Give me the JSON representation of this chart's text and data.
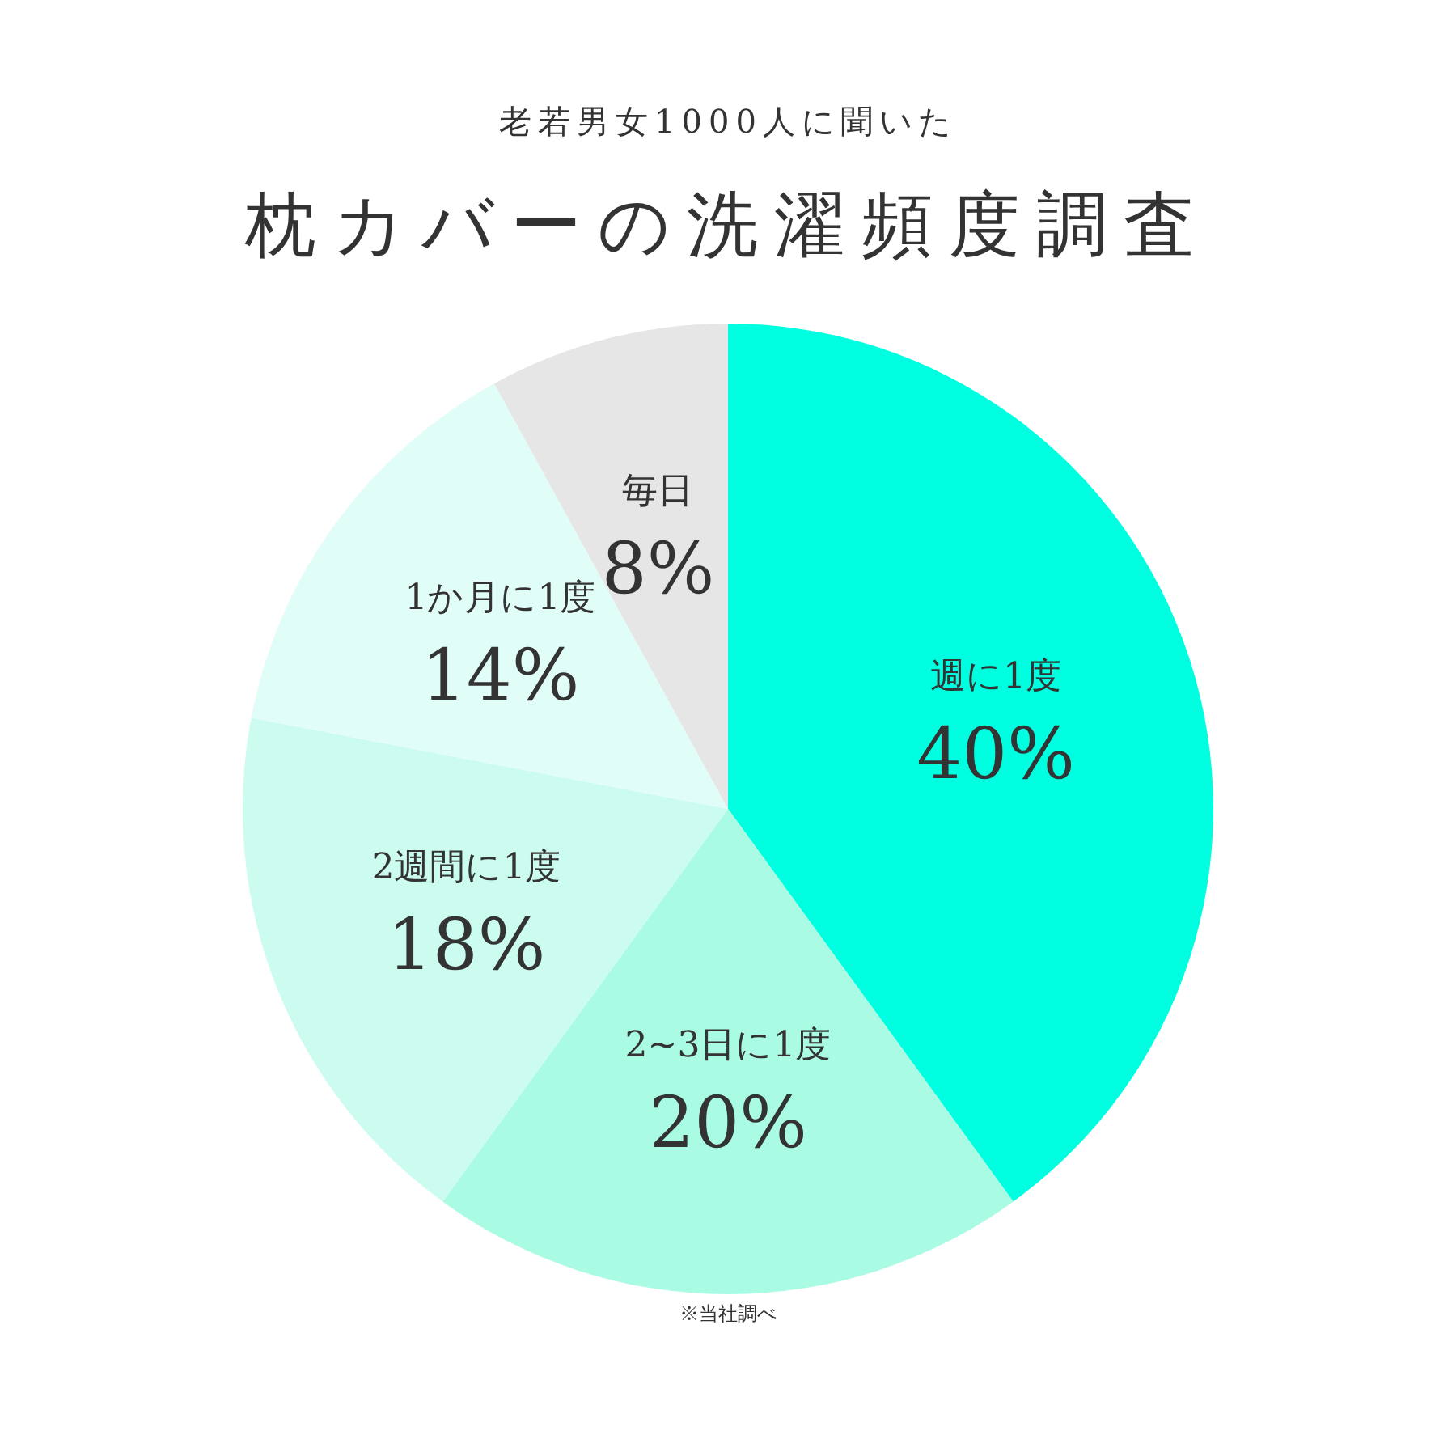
{
  "chart_data": {
    "type": "pie",
    "subtitle": "老若男女1000人に聞いた",
    "title": "枕カバーの洗濯頻度調査",
    "categories": [
      "週に1度",
      "2~3日に1度",
      "2週間に1度",
      "1か月に1度",
      "毎日"
    ],
    "values": [
      40,
      20,
      18,
      14,
      8
    ],
    "value_labels": [
      "40%",
      "20%",
      "18%",
      "14%",
      "8%"
    ],
    "colors": [
      "#00ffe1",
      "#a9fbe3",
      "#cbfcef",
      "#e1fdf8",
      "#e6e6e6"
    ],
    "annotations": [
      "※当社調べ"
    ]
  }
}
